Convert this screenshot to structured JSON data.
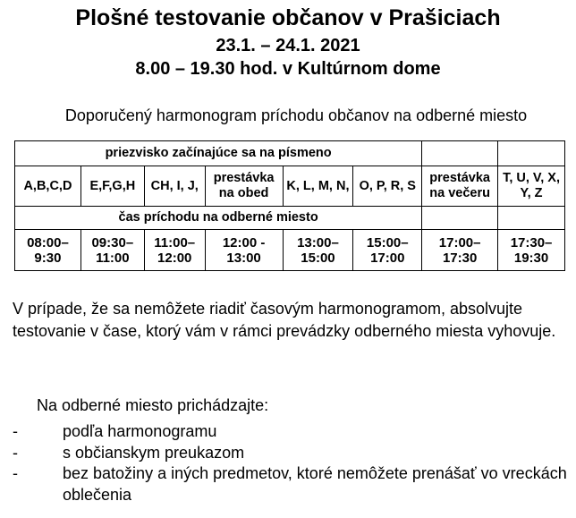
{
  "title": "Plošné testovanie občanov v Prašiciach",
  "dates": "23.1. – 24.1. 2021",
  "time_place": "8.00 – 19.30 hod. v Kultúrnom dome",
  "subtitle": "Doporučený harmonogram príchodu občanov na odberné miesto",
  "table": {
    "header_letters": "priezvisko začínajúce sa na písmeno",
    "groups": [
      "A,B,C,D",
      "E,F,G,H",
      "CH, I, J,",
      "prestávka na obed",
      "K, L, M, N,",
      "O, P, R, S",
      "prestávka na večeru",
      "T, U, V, X, Y, Z"
    ],
    "header_time": "čas príchodu na odberné miesto",
    "times": [
      "08:00– 9:30",
      "09:30– 11:00",
      "11:00– 12:00",
      "12:00 - 13:00",
      "13:00– 15:00",
      "15:00– 17:00",
      "17:00– 17:30",
      "17:30– 19:30"
    ]
  },
  "paragraph": "V prípade, že sa nemôžete riadiť časovým harmonogramom, absolvujte testovanie v čase, ktorý vám v rámci prevádzky odberného miesta vyhovuje.",
  "instructions_intro": "Na odberné miesto prichádzajte:",
  "instructions": [
    "podľa harmonogramu",
    "s občianskym preukazom",
    "bez batožiny a iných predmetov, ktoré nemôžete prenášať vo vreckách oblečenia"
  ],
  "bullet": "-"
}
